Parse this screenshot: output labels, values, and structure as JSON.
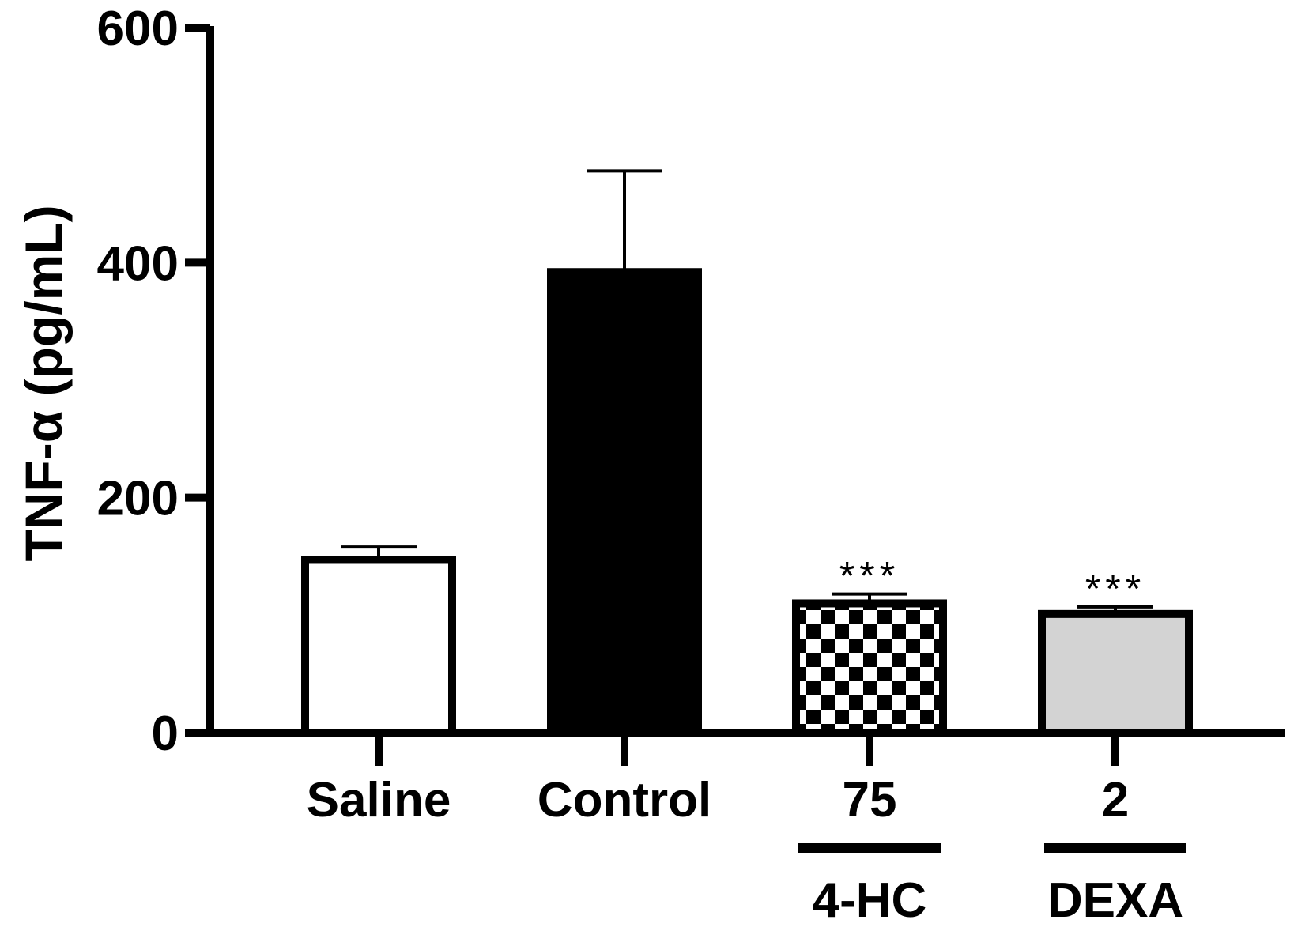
{
  "chart_data": {
    "type": "bar",
    "ylabel": "TNF-α (pg/mL)",
    "ylim": [
      0,
      600
    ],
    "yticks": [
      0,
      200,
      400,
      600
    ],
    "grid": false,
    "categories": [
      "Saline",
      "Control",
      "75",
      "2"
    ],
    "values": [
      147,
      392,
      110,
      101
    ],
    "errors": [
      11,
      86,
      8,
      6
    ],
    "significance": [
      "",
      "",
      "***",
      "***"
    ],
    "bar_fills": [
      "white",
      "black",
      "checkerboard",
      "lightgray"
    ],
    "group_labels": [
      {
        "label": "4-HC",
        "categories": [
          "75"
        ]
      },
      {
        "label": "DEXA",
        "categories": [
          "2"
        ]
      }
    ],
    "colors": {
      "outline": "#000000",
      "control_fill": "#000000",
      "saline_fill": "#ffffff",
      "dexa_fill": "#d3d3d3"
    }
  }
}
